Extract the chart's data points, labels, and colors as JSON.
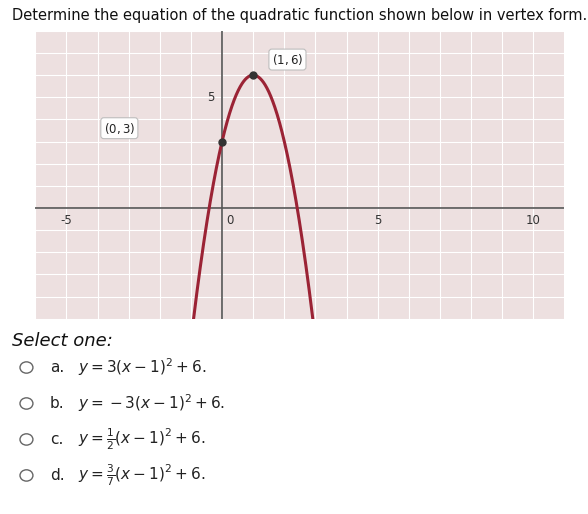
{
  "title": "Determine the equation of the quadratic function shown below in vertex form.",
  "vertex": [
    1,
    6
  ],
  "point": [
    0,
    3
  ],
  "a": -3,
  "curve_color": "#9b2335",
  "point_color": "#333333",
  "xlim": [
    -6,
    11
  ],
  "ylim": [
    -5,
    8
  ],
  "xticks": [
    -6,
    -5,
    -4,
    -3,
    -2,
    -1,
    0,
    1,
    2,
    3,
    4,
    5,
    6,
    7,
    8,
    9,
    10
  ],
  "yticks": [
    -5,
    -4,
    -3,
    -2,
    -1,
    0,
    1,
    2,
    3,
    4,
    5,
    6,
    7,
    8
  ],
  "background_color": "#ede0e0",
  "grid_color": "#ffffff",
  "axis_color": "#555555",
  "select_one_text": "Select one:",
  "options": [
    {
      "label": "a.",
      "math": "y = 3(x - 1)^2 + 6."
    },
    {
      "label": "b.",
      "math": "y = -3(x - 1)^2 + 6."
    },
    {
      "label": "c.",
      "math": "y = \\frac{1}{2}(x - 1)^2 + 6."
    },
    {
      "label": "d.",
      "math": "y = \\frac{3}{7}(x - 1)^2 + 6."
    }
  ],
  "title_fontsize": 10.5,
  "option_fontsize": 11,
  "select_fontsize": 13
}
